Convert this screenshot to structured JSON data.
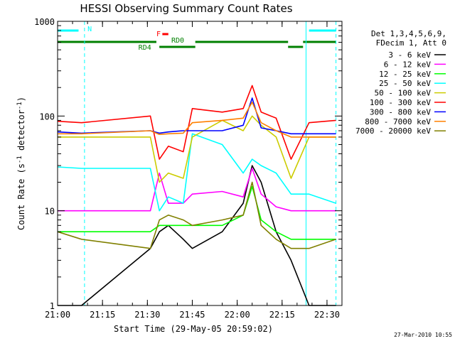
{
  "chart_data": {
    "type": "line",
    "title": "HESSI Observing Summary Count Rates",
    "xlabel": "Start Time (29-May-05 20:59:02)",
    "ylabel": "Count Rate (s",
    "ylabel_sup1": "-1",
    "ylabel_mid": " detector",
    "ylabel_sup2": "-1",
    "ylabel_end": ")",
    "footer": "27-Mar-2010 10:55",
    "y_scale": "log",
    "ylim": [
      1,
      1000
    ],
    "xlim": [
      "21:00",
      "22:35"
    ],
    "x_ticks": [
      "21:00",
      "21:15",
      "21:30",
      "21:45",
      "22:00",
      "22:15",
      "22:30"
    ],
    "y_ticks": [
      "1",
      "10",
      "100",
      "1000"
    ],
    "grid": false,
    "legend": {
      "placement": "right",
      "header": [
        "Det 1,3,4,5,6,9,",
        "FDecim 1, Att 0"
      ]
    },
    "time_points": [
      "21:00",
      "21:08",
      "21:31",
      "21:34",
      "21:37",
      "21:42",
      "21:45",
      "21:55",
      "22:02",
      "22:05",
      "22:08",
      "22:13",
      "22:18",
      "22:24",
      "22:33"
    ],
    "series": [
      {
        "name": "3 - 6 keV",
        "color": "#000000",
        "values": [
          1,
          1,
          4,
          6,
          7,
          5,
          4,
          6,
          12,
          30,
          20,
          6,
          3,
          1,
          1
        ]
      },
      {
        "name": "6 - 12 keV",
        "color": "#ff00ff",
        "values": [
          10,
          10,
          10,
          25,
          12,
          12,
          15,
          16,
          14,
          28,
          15,
          11,
          10,
          10,
          10
        ]
      },
      {
        "name": "12 - 25 keV",
        "color": "#00ff00",
        "values": [
          6,
          6,
          6,
          7,
          7,
          7,
          7,
          7,
          9,
          18,
          8,
          6,
          5,
          5,
          5
        ]
      },
      {
        "name": "25 - 50 keV",
        "color": "#00ffff",
        "values": [
          29,
          28,
          28,
          10,
          14,
          12,
          65,
          50,
          25,
          35,
          30,
          25,
          15,
          15,
          12
        ]
      },
      {
        "name": "50 - 100 keV",
        "color": "#cccc00",
        "values": [
          60,
          60,
          60,
          20,
          25,
          22,
          60,
          90,
          70,
          100,
          80,
          60,
          22,
          60,
          60
        ]
      },
      {
        "name": "100 - 300 keV",
        "color": "#ff0000",
        "values": [
          88,
          85,
          100,
          35,
          48,
          42,
          120,
          110,
          120,
          210,
          110,
          95,
          35,
          85,
          90
        ]
      },
      {
        "name": "300 - 800 keV",
        "color": "#0000ff",
        "values": [
          68,
          66,
          70,
          66,
          68,
          70,
          70,
          70,
          80,
          155,
          75,
          70,
          65,
          65,
          65
        ]
      },
      {
        "name": "800 - 7000 keV",
        "color": "#ff8000",
        "values": [
          65,
          65,
          70,
          64,
          65,
          66,
          85,
          90,
          95,
          140,
          85,
          70,
          60,
          60,
          60
        ]
      },
      {
        "name": "7000 - 20000 keV",
        "color": "#808000",
        "values": [
          6,
          5,
          4,
          8,
          9,
          8,
          7,
          8,
          9,
          20,
          7,
          5,
          4,
          4,
          5
        ]
      }
    ],
    "status_bars": [
      {
        "label": "N",
        "color": "#00ffff",
        "segments": [
          [
            "21:00",
            "21:07"
          ],
          [
            "22:24",
            "22:33"
          ]
        ]
      },
      {
        "label": "F",
        "color": "#ff0000",
        "segments": [
          [
            "21:35",
            "21:37"
          ]
        ]
      },
      {
        "label": "RD0",
        "color": "#008000",
        "segments": [
          [
            "21:00",
            "21:33"
          ],
          [
            "21:46",
            "22:17"
          ],
          [
            "22:22",
            "22:33"
          ]
        ]
      },
      {
        "label": "RD4",
        "color": "#008000",
        "segments": [
          [
            "21:34",
            "21:46"
          ],
          [
            "22:17",
            "22:22"
          ]
        ]
      }
    ],
    "vertical_lines": [
      {
        "time": "21:00",
        "style": "solid",
        "color": "#00ffff"
      },
      {
        "time": "21:09",
        "style": "dashed",
        "color": "#00ffff"
      },
      {
        "time": "22:23",
        "style": "solid",
        "color": "#00ffff"
      },
      {
        "time": "22:33",
        "style": "dashed",
        "color": "#00ffff"
      }
    ]
  }
}
